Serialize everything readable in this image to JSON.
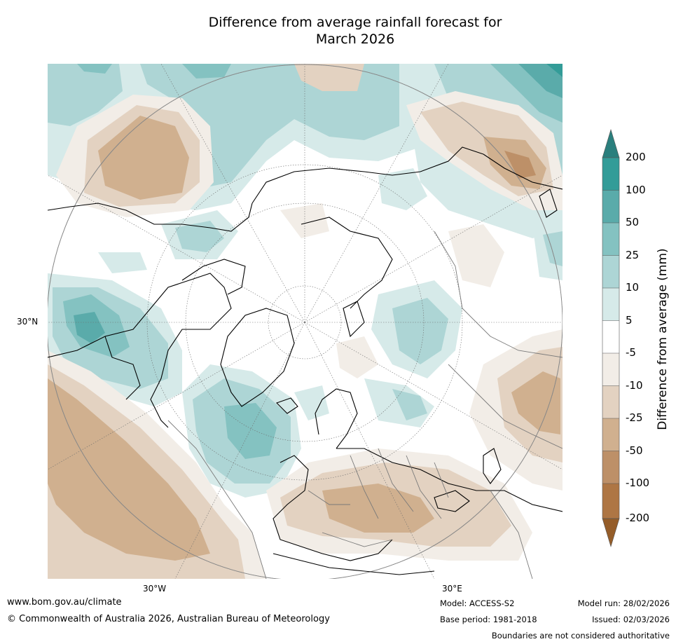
{
  "title": {
    "line1": "Difference from average rainfall forecast for",
    "line2": "March 2026"
  },
  "map_labels": {
    "lat_30n": "30°N",
    "lon_30w": "30°W",
    "lon_30e": "30°E"
  },
  "colorbar": {
    "title": "Difference from average (mm)",
    "ticks": [
      "200",
      "100",
      "50",
      "25",
      "10",
      "5",
      "-5",
      "-10",
      "-25",
      "-50",
      "-100",
      "-200"
    ],
    "colors": {
      "over": "#2a7f7d",
      "c200_100": "#339c98",
      "c100_50": "#5aabaa",
      "c50_25": "#84c2c1",
      "c25_10": "#add5d5",
      "c10_5": "#d6eae9",
      "c5_m5": "#ffffff",
      "cm5_m10": "#f2ede7",
      "cm10_m25": "#e3d2c1",
      "cm25_m50": "#d0b08f",
      "cm50_m100": "#bd9068",
      "cm100_m200": "#ae7644",
      "under": "#955d29"
    }
  },
  "footer": {
    "url": "www.bom.gov.au/climate",
    "copyright": "© Commonwealth of Australia 2026, Australian Bureau of Meteorology",
    "model": "Model: ACCESS-S2",
    "base_period": "Base period: 1981-2018",
    "model_run": "Model run: 28/02/2026",
    "issued": "Issued: 02/03/2026",
    "disclaimer": "Boundaries are not considered authoritative"
  }
}
